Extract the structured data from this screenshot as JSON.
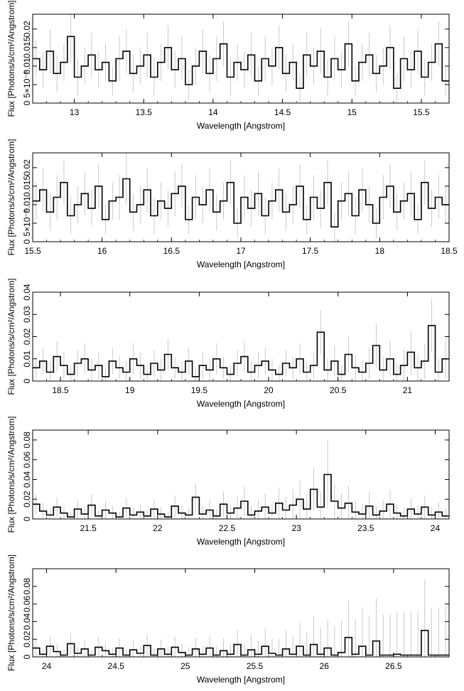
{
  "chart_data": [
    {
      "type": "line",
      "style": "histogram-step-with-errorbars",
      "xlabel": "Wavelength [Angstrom]",
      "ylabel": "Flux [Photons/s/cm²/Angstrom]",
      "xlim": [
        12.7,
        15.7
      ],
      "ylim": [
        0,
        0.024
      ],
      "xticks": [
        13,
        13.5,
        14,
        14.5,
        15,
        15.5
      ],
      "xtick_labels": [
        "13",
        "13.5",
        "14",
        "14.5",
        "15",
        "15.5"
      ],
      "yticks": [
        0,
        0.005,
        0.01,
        0.015,
        0.02
      ],
      "ytick_labels": [
        "0",
        "5×10⁻³",
        "0.01",
        "0.015",
        "0.02"
      ],
      "series": [
        {
          "x_start": 12.7,
          "bin_width": 0.05,
          "y": [
            0.012,
            0.009,
            0.014,
            0.008,
            0.011,
            0.018,
            0.007,
            0.01,
            0.013,
            0.009,
            0.011,
            0.006,
            0.012,
            0.014,
            0.008,
            0.01,
            0.013,
            0.007,
            0.011,
            0.015,
            0.009,
            0.012,
            0.005,
            0.01,
            0.014,
            0.008,
            0.012,
            0.016,
            0.007,
            0.011,
            0.009,
            0.013,
            0.006,
            0.012,
            0.01,
            0.015,
            0.008,
            0.011,
            0.004,
            0.013,
            0.01,
            0.014,
            0.007,
            0.012,
            0.009,
            0.016,
            0.006,
            0.011,
            0.013,
            0.008,
            0.01,
            0.015,
            0.004,
            0.012,
            0.009,
            0.014,
            0.007,
            0.011,
            0.016,
            0.006
          ],
          "err": [
            0.005,
            0.005,
            0.006,
            0.005,
            0.005,
            0.007,
            0.005,
            0.005,
            0.006,
            0.005,
            0.005,
            0.004,
            0.006,
            0.006,
            0.005,
            0.005,
            0.006,
            0.005,
            0.005,
            0.006,
            0.005,
            0.006,
            0.004,
            0.005,
            0.006,
            0.005,
            0.006,
            0.006,
            0.005,
            0.005,
            0.005,
            0.006,
            0.004,
            0.006,
            0.005,
            0.006,
            0.005,
            0.005,
            0.004,
            0.006,
            0.005,
            0.006,
            0.005,
            0.006,
            0.005,
            0.006,
            0.004,
            0.005,
            0.006,
            0.005,
            0.005,
            0.006,
            0.004,
            0.006,
            0.005,
            0.006,
            0.005,
            0.005,
            0.006,
            0.004
          ]
        }
      ]
    },
    {
      "type": "line",
      "style": "histogram-step-with-errorbars",
      "xlabel": "Wavelength [Angstrom]",
      "ylabel": "Flux [Photons/s/cm²/Angstrom]",
      "xlim": [
        15.5,
        18.5
      ],
      "ylim": [
        0,
        0.024
      ],
      "xticks": [
        15.5,
        16,
        16.5,
        17,
        17.5,
        18,
        18.5
      ],
      "xtick_labels": [
        "15.5",
        "16",
        "16.5",
        "17",
        "17.5",
        "18",
        "18.5"
      ],
      "yticks": [
        0,
        0.005,
        0.01,
        0.015,
        0.02
      ],
      "ytick_labels": [
        "0",
        "5×10⁻³",
        "0.01",
        "0.015",
        "0.02"
      ],
      "series": [
        {
          "x_start": 15.5,
          "bin_width": 0.05,
          "y": [
            0.011,
            0.014,
            0.008,
            0.012,
            0.016,
            0.007,
            0.01,
            0.013,
            0.009,
            0.015,
            0.006,
            0.011,
            0.012,
            0.017,
            0.008,
            0.01,
            0.014,
            0.007,
            0.011,
            0.009,
            0.013,
            0.015,
            0.006,
            0.012,
            0.01,
            0.014,
            0.008,
            0.011,
            0.016,
            0.005,
            0.012,
            0.009,
            0.013,
            0.007,
            0.011,
            0.014,
            0.008,
            0.01,
            0.015,
            0.006,
            0.012,
            0.009,
            0.016,
            0.004,
            0.011,
            0.013,
            0.007,
            0.014,
            0.01,
            0.005,
            0.012,
            0.015,
            0.008,
            0.011,
            0.013,
            0.006,
            0.016,
            0.009,
            0.012,
            0.01
          ],
          "err": [
            0.005,
            0.006,
            0.005,
            0.006,
            0.006,
            0.005,
            0.005,
            0.006,
            0.005,
            0.006,
            0.004,
            0.005,
            0.006,
            0.007,
            0.005,
            0.005,
            0.006,
            0.005,
            0.005,
            0.005,
            0.006,
            0.006,
            0.004,
            0.006,
            0.005,
            0.006,
            0.005,
            0.005,
            0.006,
            0.004,
            0.006,
            0.005,
            0.006,
            0.005,
            0.005,
            0.006,
            0.005,
            0.005,
            0.006,
            0.004,
            0.006,
            0.005,
            0.006,
            0.004,
            0.005,
            0.006,
            0.005,
            0.006,
            0.005,
            0.004,
            0.006,
            0.006,
            0.005,
            0.005,
            0.006,
            0.004,
            0.006,
            0.005,
            0.006,
            0.005
          ]
        }
      ]
    },
    {
      "type": "line",
      "style": "histogram-step-with-errorbars",
      "xlabel": "Wavelength [Angstrom]",
      "ylabel": "Flux [Photons/s/cm²/Angstrom]",
      "xlim": [
        18.3,
        21.3
      ],
      "ylim": [
        0,
        0.04
      ],
      "xticks": [
        18.5,
        19,
        19.5,
        20,
        20.5,
        21
      ],
      "xtick_labels": [
        "18.5",
        "19",
        "19.5",
        "20",
        "20.5",
        "21"
      ],
      "yticks": [
        0,
        0.01,
        0.02,
        0.03,
        0.04
      ],
      "ytick_labels": [
        "0",
        "0.01",
        "0.02",
        "0.03",
        "0.04"
      ],
      "series": [
        {
          "x_start": 18.3,
          "bin_width": 0.05,
          "y": [
            0.006,
            0.009,
            0.004,
            0.011,
            0.007,
            0.003,
            0.008,
            0.01,
            0.005,
            0.007,
            0.002,
            0.009,
            0.006,
            0.004,
            0.01,
            0.007,
            0.003,
            0.008,
            0.005,
            0.012,
            0.006,
            0.004,
            0.009,
            0.002,
            0.007,
            0.005,
            0.01,
            0.006,
            0.003,
            0.008,
            0.011,
            0.004,
            0.007,
            0.009,
            0.005,
            0.003,
            0.008,
            0.006,
            0.01,
            0.004,
            0.007,
            0.022,
            0.005,
            0.009,
            0.003,
            0.012,
            0.006,
            0.004,
            0.008,
            0.016,
            0.005,
            0.01,
            0.003,
            0.007,
            0.013,
            0.006,
            0.009,
            0.025,
            0.004,
            0.01
          ],
          "err": [
            0.005,
            0.006,
            0.005,
            0.007,
            0.006,
            0.004,
            0.006,
            0.007,
            0.005,
            0.006,
            0.004,
            0.006,
            0.005,
            0.005,
            0.007,
            0.006,
            0.004,
            0.006,
            0.005,
            0.007,
            0.005,
            0.005,
            0.006,
            0.004,
            0.006,
            0.005,
            0.007,
            0.005,
            0.004,
            0.006,
            0.007,
            0.005,
            0.006,
            0.006,
            0.005,
            0.004,
            0.006,
            0.005,
            0.007,
            0.005,
            0.006,
            0.01,
            0.005,
            0.007,
            0.004,
            0.008,
            0.006,
            0.005,
            0.007,
            0.01,
            0.006,
            0.008,
            0.005,
            0.007,
            0.01,
            0.006,
            0.008,
            0.012,
            0.006,
            0.009
          ]
        }
      ]
    },
    {
      "type": "line",
      "style": "histogram-step-with-errorbars",
      "xlabel": "Wavelength [Angstrom]",
      "ylabel": "Flux [Photons/s/cm²/Angstrom]",
      "xlim": [
        21.1,
        24.1
      ],
      "ylim": [
        0,
        0.09
      ],
      "xticks": [
        21.5,
        22,
        22.5,
        23,
        23.5,
        24
      ],
      "xtick_labels": [
        "21.5",
        "22",
        "22.5",
        "23",
        "23.5",
        "24"
      ],
      "yticks": [
        0,
        0.02,
        0.04,
        0.06,
        0.08
      ],
      "ytick_labels": [
        "0",
        "0.02",
        "0.04",
        "0.06",
        "0.08"
      ],
      "series": [
        {
          "x_start": 21.1,
          "bin_width": 0.05,
          "y": [
            0.015,
            0.008,
            0.004,
            0.012,
            0.006,
            0.002,
            0.01,
            0.005,
            0.014,
            0.003,
            0.009,
            0.006,
            0.002,
            0.011,
            0.004,
            0.007,
            0.003,
            0.01,
            0.005,
            0.002,
            0.013,
            0.006,
            0.004,
            0.022,
            0.005,
            0.009,
            0.003,
            0.015,
            0.006,
            0.011,
            0.018,
            0.004,
            0.008,
            0.012,
            0.006,
            0.016,
            0.009,
            0.014,
            0.02,
            0.01,
            0.03,
            0.012,
            0.045,
            0.018,
            0.011,
            0.016,
            0.007,
            0.005,
            0.013,
            0.004,
            0.008,
            0.015,
            0.006,
            0.003,
            0.01,
            0.005,
            0.012,
            0.004,
            0.007,
            0.003
          ],
          "err": [
            0.01,
            0.008,
            0.006,
            0.01,
            0.007,
            0.005,
            0.009,
            0.007,
            0.011,
            0.006,
            0.009,
            0.007,
            0.005,
            0.01,
            0.007,
            0.008,
            0.006,
            0.01,
            0.007,
            0.005,
            0.011,
            0.008,
            0.007,
            0.014,
            0.008,
            0.01,
            0.007,
            0.013,
            0.009,
            0.012,
            0.015,
            0.009,
            0.012,
            0.014,
            0.011,
            0.016,
            0.013,
            0.016,
            0.019,
            0.015,
            0.022,
            0.016,
            0.035,
            0.018,
            0.015,
            0.017,
            0.011,
            0.01,
            0.014,
            0.009,
            0.011,
            0.014,
            0.009,
            0.008,
            0.011,
            0.009,
            0.012,
            0.008,
            0.01,
            0.008
          ]
        }
      ]
    },
    {
      "type": "line",
      "style": "histogram-step-with-errorbars",
      "xlabel": "Wavelength [Angstrom]",
      "ylabel": "Flux [Photons/s/cm²/Angstrom]",
      "xlim": [
        23.9,
        26.9
      ],
      "ylim": [
        0,
        0.1
      ],
      "xticks": [
        24,
        24.5,
        25,
        25.5,
        26,
        26.5
      ],
      "xtick_labels": [
        "24",
        "24.5",
        "25",
        "25.5",
        "26",
        "26.5"
      ],
      "yticks": [
        0,
        0.02,
        0.04,
        0.06,
        0.08
      ],
      "ytick_labels": [
        "0",
        "0.02",
        "0.04",
        "0.06",
        "0.08"
      ],
      "series": [
        {
          "x_start": 23.9,
          "bin_width": 0.05,
          "y": [
            0.01,
            0.003,
            0.012,
            0.006,
            0.002,
            0.015,
            0.004,
            0.009,
            0.002,
            0.011,
            0.007,
            0.003,
            0.01,
            0.002,
            0.008,
            0.004,
            0.013,
            0.002,
            0.009,
            0.003,
            0.011,
            0.005,
            0.002,
            0.009,
            0.003,
            0.01,
            0.002,
            0.007,
            0.003,
            0.014,
            0.002,
            0.008,
            0.003,
            0.012,
            0.004,
            0.002,
            0.009,
            0.003,
            0.012,
            0.002,
            0.014,
            0.003,
            0.01,
            0.002,
            0.005,
            0.022,
            0.003,
            0.012,
            0.002,
            0.018,
            0.002,
            0.002,
            0.003,
            0.002,
            0.002,
            0.002,
            0.03,
            0.002,
            0.002,
            0.002
          ],
          "err": [
            0.01,
            0.007,
            0.011,
            0.008,
            0.006,
            0.012,
            0.007,
            0.01,
            0.006,
            0.011,
            0.009,
            0.007,
            0.011,
            0.007,
            0.01,
            0.008,
            0.012,
            0.008,
            0.011,
            0.009,
            0.012,
            0.01,
            0.009,
            0.013,
            0.01,
            0.014,
            0.01,
            0.014,
            0.012,
            0.017,
            0.013,
            0.017,
            0.015,
            0.02,
            0.017,
            0.018,
            0.022,
            0.021,
            0.027,
            0.026,
            0.032,
            0.03,
            0.033,
            0.033,
            0.036,
            0.042,
            0.04,
            0.044,
            0.044,
            0.048,
            0.046,
            0.047,
            0.048,
            0.049,
            0.05,
            0.05,
            0.058,
            0.053,
            0.054,
            0.055
          ]
        }
      ]
    }
  ]
}
